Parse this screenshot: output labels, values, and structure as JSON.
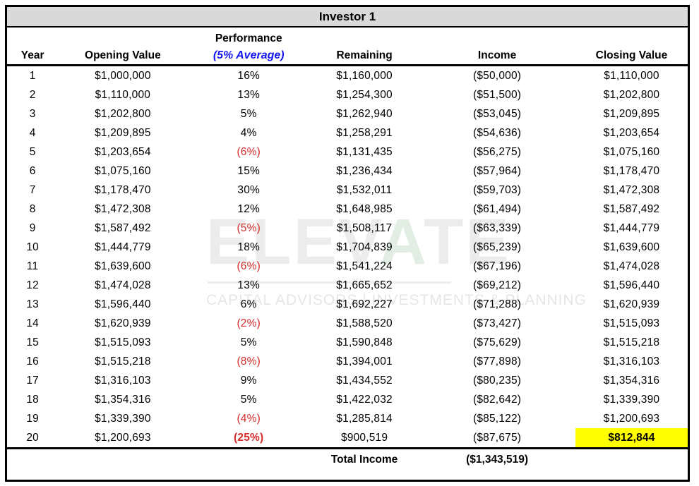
{
  "title": "Investor 1",
  "columns": {
    "year": "Year",
    "opening": "Opening Value",
    "performance_line1": "Performance",
    "performance_line2": "(5% Average)",
    "remaining": "Remaining",
    "income": "Income",
    "closing": "Closing Value"
  },
  "rows": [
    {
      "year": "1",
      "opening": "$1,000,000",
      "performance": "16%",
      "remaining": "$1,160,000",
      "income": "($50,000)",
      "closing": "$1,110,000"
    },
    {
      "year": "2",
      "opening": "$1,110,000",
      "performance": "13%",
      "remaining": "$1,254,300",
      "income": "($51,500)",
      "closing": "$1,202,800"
    },
    {
      "year": "3",
      "opening": "$1,202,800",
      "performance": "5%",
      "remaining": "$1,262,940",
      "income": "($53,045)",
      "closing": "$1,209,895"
    },
    {
      "year": "4",
      "opening": "$1,209,895",
      "performance": "4%",
      "remaining": "$1,258,291",
      "income": "($54,636)",
      "closing": "$1,203,654"
    },
    {
      "year": "5",
      "opening": "$1,203,654",
      "performance": "(6%)",
      "remaining": "$1,131,435",
      "income": "($56,275)",
      "closing": "$1,075,160"
    },
    {
      "year": "6",
      "opening": "$1,075,160",
      "performance": "15%",
      "remaining": "$1,236,434",
      "income": "($57,964)",
      "closing": "$1,178,470"
    },
    {
      "year": "7",
      "opening": "$1,178,470",
      "performance": "30%",
      "remaining": "$1,532,011",
      "income": "($59,703)",
      "closing": "$1,472,308"
    },
    {
      "year": "8",
      "opening": "$1,472,308",
      "performance": "12%",
      "remaining": "$1,648,985",
      "income": "($61,494)",
      "closing": "$1,587,492"
    },
    {
      "year": "9",
      "opening": "$1,587,492",
      "performance": "(5%)",
      "remaining": "$1,508,117",
      "income": "($63,339)",
      "closing": "$1,444,779"
    },
    {
      "year": "10",
      "opening": "$1,444,779",
      "performance": "18%",
      "remaining": "$1,704,839",
      "income": "($65,239)",
      "closing": "$1,639,600"
    },
    {
      "year": "11",
      "opening": "$1,639,600",
      "performance": "(6%)",
      "remaining": "$1,541,224",
      "income": "($67,196)",
      "closing": "$1,474,028"
    },
    {
      "year": "12",
      "opening": "$1,474,028",
      "performance": "13%",
      "remaining": "$1,665,652",
      "income": "($69,212)",
      "closing": "$1,596,440"
    },
    {
      "year": "13",
      "opening": "$1,596,440",
      "performance": "6%",
      "remaining": "$1,692,227",
      "income": "($71,288)",
      "closing": "$1,620,939"
    },
    {
      "year": "14",
      "opening": "$1,620,939",
      "performance": "(2%)",
      "remaining": "$1,588,520",
      "income": "($73,427)",
      "closing": "$1,515,093"
    },
    {
      "year": "15",
      "opening": "$1,515,093",
      "performance": "5%",
      "remaining": "$1,590,848",
      "income": "($75,629)",
      "closing": "$1,515,218"
    },
    {
      "year": "16",
      "opening": "$1,515,218",
      "performance": "(8%)",
      "remaining": "$1,394,001",
      "income": "($77,898)",
      "closing": "$1,316,103"
    },
    {
      "year": "17",
      "opening": "$1,316,103",
      "performance": "9%",
      "remaining": "$1,434,552",
      "income": "($80,235)",
      "closing": "$1,354,316"
    },
    {
      "year": "18",
      "opening": "$1,354,316",
      "performance": "5%",
      "remaining": "$1,422,032",
      "income": "($82,642)",
      "closing": "$1,339,390"
    },
    {
      "year": "19",
      "opening": "$1,339,390",
      "performance": "(4%)",
      "remaining": "$1,285,814",
      "income": "($85,122)",
      "closing": "$1,200,693"
    },
    {
      "year": "20",
      "opening": "$1,200,693",
      "performance": "(25%)",
      "remaining": "$900,519",
      "income": "($87,675)",
      "closing": "$812,844",
      "emphasis": true,
      "highlight_closing": true
    }
  ],
  "total": {
    "label": "Total Income",
    "value": "($1,343,519)"
  },
  "watermark": {
    "part1": "ELEV",
    "part2": "A",
    "part3": "TE",
    "tagline": "CAPITAL ADVISORS | INVESTMENTS & PLANNING"
  },
  "colors": {
    "accent_blue": "#1414f0",
    "negative_red": "#d62b2b",
    "highlight_yellow": "#ffff00",
    "title_bar_gray": "#d9d9d9"
  }
}
